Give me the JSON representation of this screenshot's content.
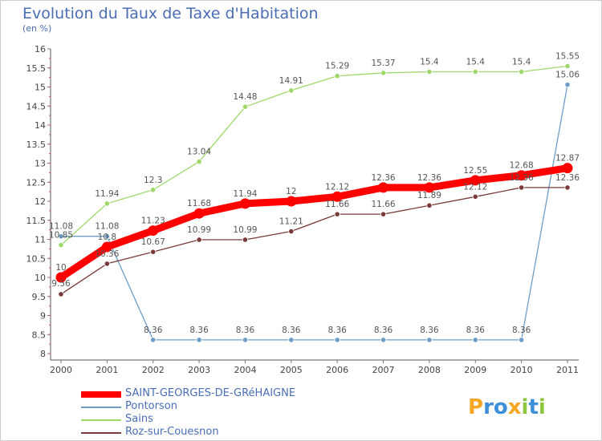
{
  "title": "Evolution du Taux de Taxe d'Habitation",
  "subtitle": "(en %)",
  "logo": {
    "text": "Proxiti",
    "letters": [
      {
        "ch": "P",
        "color": "#f5a623"
      },
      {
        "ch": "r",
        "color": "#3c8fd8"
      },
      {
        "ch": "o",
        "color": "#3c8fd8"
      },
      {
        "ch": "x",
        "color": "#f5a623"
      },
      {
        "ch": "i",
        "color": "#8cc63f"
      },
      {
        "ch": "t",
        "color": "#3c8fd8"
      },
      {
        "ch": "i",
        "color": "#8cc63f"
      }
    ]
  },
  "chart_data": {
    "type": "line",
    "title": "Evolution du Taux de Taxe d'Habitation",
    "ylabel": "(en %)",
    "xlabel": "",
    "ylim": [
      8,
      16
    ],
    "y_ticks": [
      "8",
      "8.5",
      "9",
      "9.5",
      "10",
      "10.5",
      "11",
      "11.5",
      "12",
      "12.5",
      "13",
      "13.5",
      "14",
      "14.5",
      "15",
      "15.5",
      "16"
    ],
    "categories": [
      "2000",
      "2001",
      "2002",
      "2003",
      "2004",
      "2005",
      "2006",
      "2007",
      "2008",
      "2009",
      "2010",
      "2011"
    ],
    "grid": false,
    "legend_position": "bottom-left",
    "series": [
      {
        "name": "SAINT-GEORGES-DE-GRéHAIGNE",
        "color": "#ff0000",
        "values": [
          10,
          10.8,
          11.23,
          11.68,
          11.94,
          12,
          12.12,
          12.36,
          12.36,
          12.55,
          12.68,
          12.87
        ],
        "labels": [
          "10",
          "10.8",
          "11.23",
          "11.68",
          "11.94",
          "12",
          "12.12",
          "12.36",
          "12.36",
          "12.55",
          "12.68",
          "12.87"
        ]
      },
      {
        "name": "Pontorson",
        "color": "#6d9ec8",
        "values": [
          11.08,
          11.08,
          8.36,
          8.36,
          8.36,
          8.36,
          8.36,
          8.36,
          8.36,
          8.36,
          8.36,
          15.06
        ],
        "labels": [
          "11.08",
          "11.08",
          "8.36",
          "8.36",
          "8.36",
          "8.36",
          "8.36",
          "8.36",
          "8.36",
          "8.36",
          "8.36",
          "15.06"
        ]
      },
      {
        "name": "Sains",
        "color": "#9fd86a",
        "values": [
          10.85,
          11.94,
          12.3,
          13.04,
          14.48,
          14.91,
          15.29,
          15.37,
          15.4,
          15.4,
          15.4,
          15.55
        ],
        "labels": [
          "10.85",
          "11.94",
          "12.3",
          "13.04",
          "14.48",
          "14.91",
          "15.29",
          "15.37",
          "15.4",
          "15.4",
          "15.4",
          "15.55"
        ]
      },
      {
        "name": "Roz-sur-Couesnon",
        "color": "#7a3a3a",
        "values": [
          9.56,
          10.36,
          10.67,
          10.99,
          10.99,
          11.21,
          11.66,
          11.66,
          11.89,
          12.12,
          12.36,
          12.36
        ],
        "labels": [
          "9.56",
          "10.36",
          "10.67",
          "10.99",
          "10.99",
          "11.21",
          "11.66",
          "11.66",
          "11.89",
          "12.12",
          "12.36",
          "12.36"
        ]
      }
    ]
  }
}
